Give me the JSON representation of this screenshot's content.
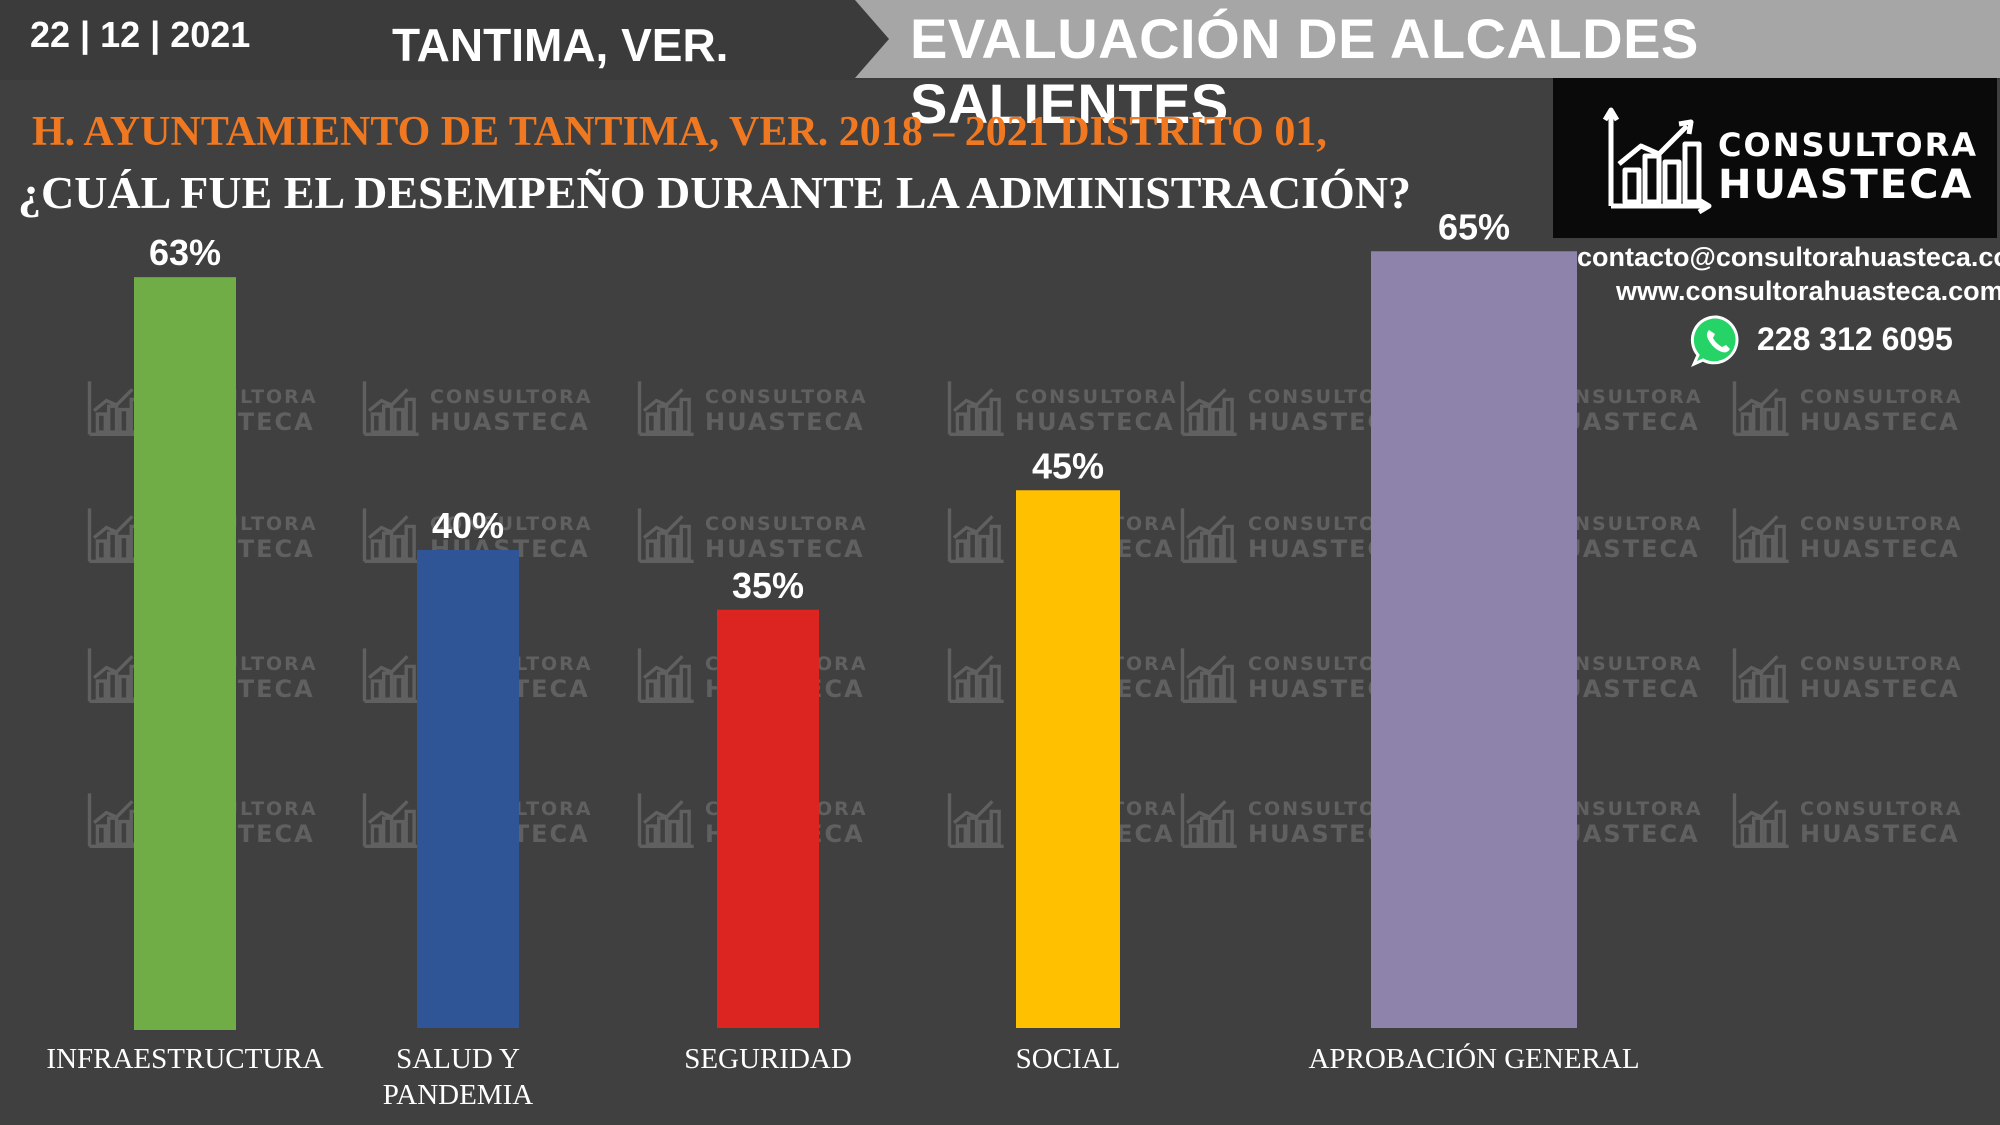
{
  "header": {
    "date": "22 | 12 | 2021",
    "place": "TANTIMA, VER.",
    "banner": "EVALUACIÓN DE ALCALDES SALIENTES",
    "subtitle": "H. AYUNTAMIENTO DE TANTIMA, VER. 2018 – 2021 DISTRITO 01,",
    "question": "¿CUÁL FUE EL DESEMPEÑO DURANTE LA ADMINISTRACIÓN?"
  },
  "brand": {
    "line1": "CONSULTORA",
    "line2": "HUASTECA",
    "email": "contacto@consultorahuasteca.com",
    "web": "www.consultorahuasteca.com",
    "phone": "228 312 6095",
    "icons": [
      "bar-chart-arrow-icon",
      "whatsapp-icon"
    ]
  },
  "chart_data": {
    "type": "bar",
    "title": "",
    "xlabel": "",
    "ylabel": "",
    "ylim": [
      0,
      100
    ],
    "grid": false,
    "categories": [
      "INFRAESTRUCTURA",
      "SALUD Y PANDEMIA",
      "SEGURIDAD",
      "SOCIAL",
      "APROBACIÓN GENERAL"
    ],
    "category_lines": [
      [
        "INFRAESTRUCTURA"
      ],
      [
        "SALUD Y",
        "PANDEMIA"
      ],
      [
        "SEGURIDAD"
      ],
      [
        "SOCIAL"
      ],
      [
        "APROBACIÓN GENERAL"
      ]
    ],
    "values": [
      63,
      40,
      35,
      45,
      65
    ],
    "value_labels": [
      "63%",
      "40%",
      "35%",
      "45%",
      "65%"
    ],
    "colors": [
      "#70ad47",
      "#2f5597",
      "#dc2520",
      "#ffc000",
      "#8e83ab"
    ]
  }
}
